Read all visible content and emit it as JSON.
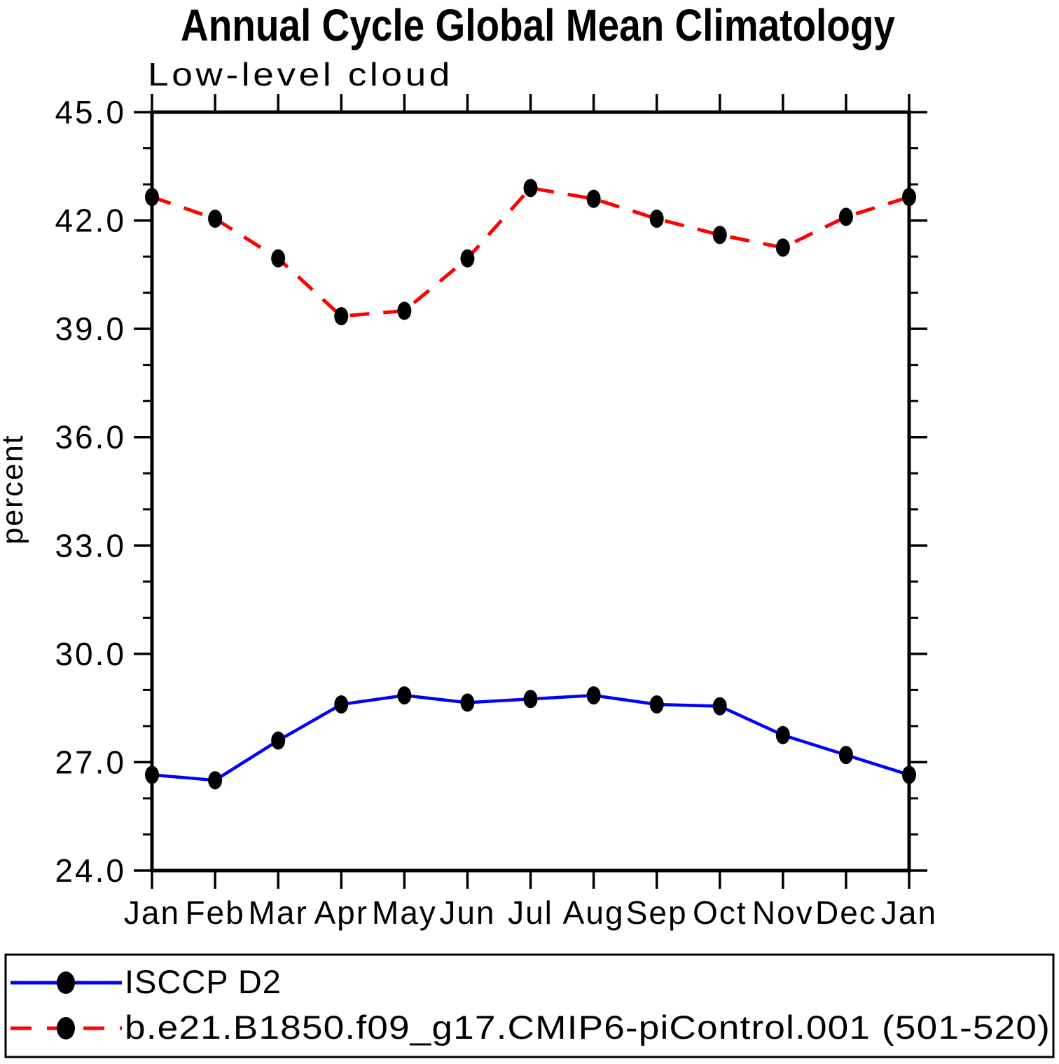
{
  "chart_data": {
    "type": "line",
    "title": "Annual Cycle Global Mean Climatology",
    "subtitle": "Low-level cloud",
    "ylabel": "percent",
    "categories": [
      "Jan",
      "Feb",
      "Mar",
      "Apr",
      "May",
      "Jun",
      "Jul",
      "Aug",
      "Sep",
      "Oct",
      "Nov",
      "Dec",
      "Jan"
    ],
    "ylim": [
      24.0,
      45.0
    ],
    "ytick_major_step": 3.0,
    "ytick_minor_step": 1.0,
    "ytick_labels": [
      "45.0",
      "42.0",
      "39.0",
      "36.0",
      "33.0",
      "30.0",
      "27.0",
      "24.0"
    ],
    "grid": false,
    "legend_position": "bottom-outside",
    "background_color": "#ffffff",
    "axis_color": "#000000",
    "marker_shape": "filled-circle",
    "series": [
      {
        "name": "ISCCP D2",
        "color": "#0000ff",
        "line_style": "solid",
        "marker_color": "#000000",
        "values": [
          26.65,
          26.5,
          27.6,
          28.6,
          28.85,
          28.65,
          28.75,
          28.85,
          28.6,
          28.55,
          27.75,
          27.2,
          26.65
        ]
      },
      {
        "name": "b.e21.B1850.f09_g17.CMIP6-piControl.001 (501-520)",
        "color": "#ff0000",
        "line_style": "dashed",
        "marker_color": "#000000",
        "values": [
          42.65,
          42.05,
          40.95,
          39.35,
          39.5,
          40.95,
          42.9,
          42.6,
          42.05,
          41.6,
          41.25,
          42.1,
          42.65
        ]
      }
    ]
  }
}
